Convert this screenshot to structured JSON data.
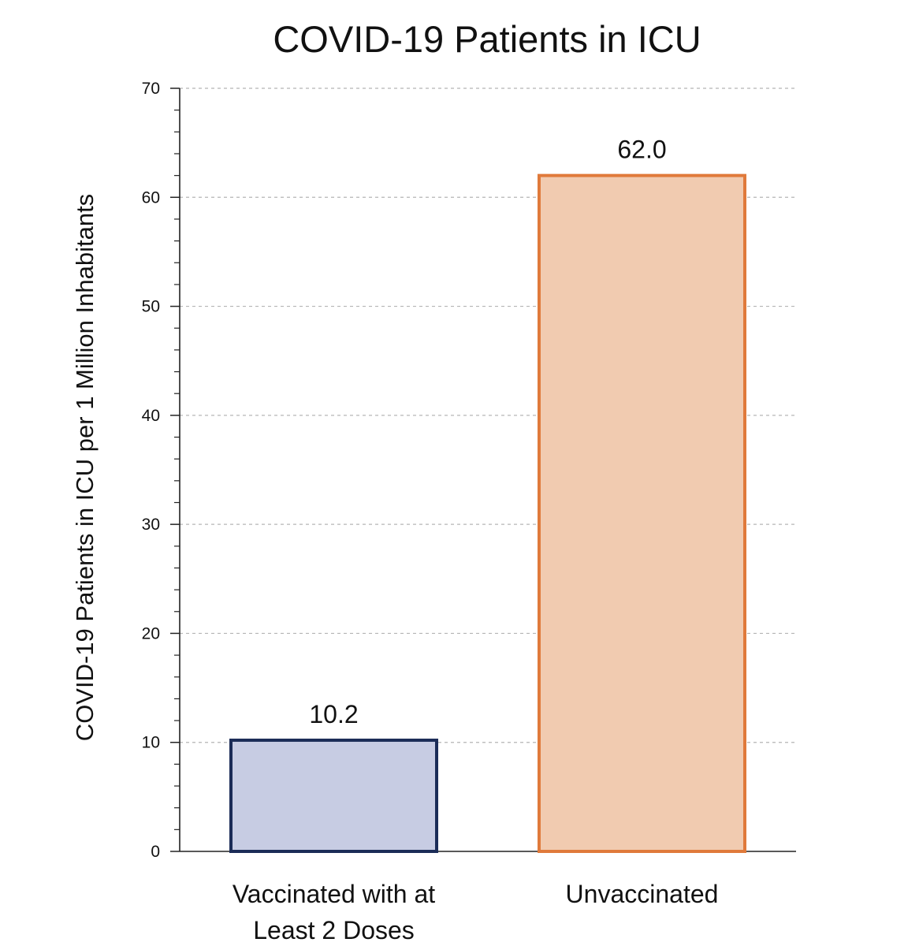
{
  "chart_data": {
    "type": "bar",
    "title": "COVID-19 Patients in ICU",
    "xlabel": "",
    "ylabel": "COVID-19 Patients in ICU  per 1 Million Inhabitants",
    "categories": [
      [
        "Vaccinated with at",
        "Least 2 Doses"
      ],
      [
        "Unvaccinated"
      ]
    ],
    "values": [
      10.2,
      62.0
    ],
    "value_labels": [
      "10.2",
      "62.0"
    ],
    "ylim": [
      0,
      70
    ],
    "yticks": [
      0,
      10,
      20,
      30,
      40,
      50,
      60,
      70
    ],
    "grid": true,
    "bar_fill_colors": [
      "#c7cce3",
      "#f1cbb0"
    ],
    "bar_edge_colors": [
      "#1b2c57",
      "#e07a3b"
    ]
  }
}
